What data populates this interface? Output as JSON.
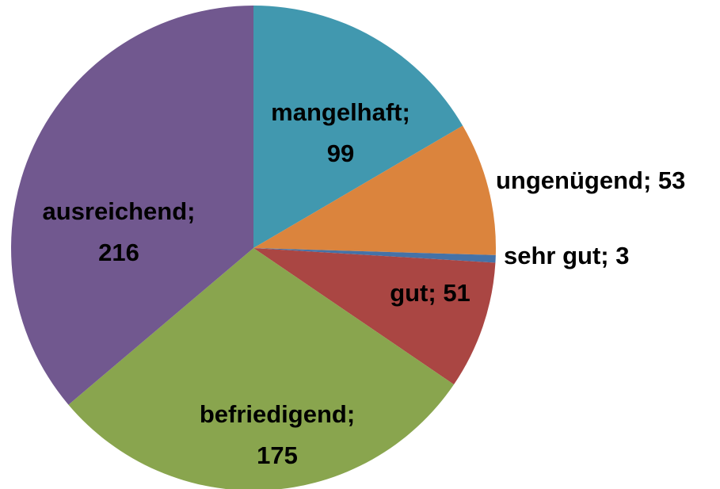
{
  "chart_data": {
    "type": "pie",
    "values": [
      99,
      53,
      3,
      51,
      175,
      216
    ],
    "value_labels": [
      "mangelhaft; 99",
      "ungenügend; 53",
      "sehr gut; 3",
      "gut; 51",
      "befriedigend; 175",
      "ausreichend; 216"
    ],
    "colors": [
      "#4198af",
      "#db843d",
      "#4572a7",
      "#aa4643",
      "#89a54e",
      "#71588f"
    ]
  }
}
